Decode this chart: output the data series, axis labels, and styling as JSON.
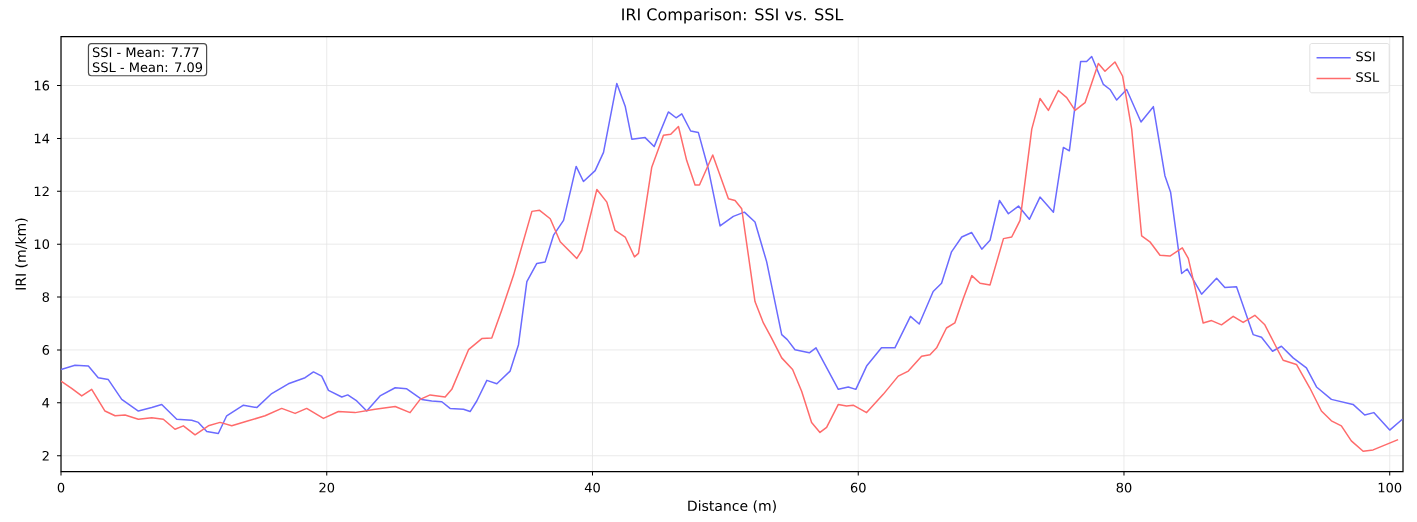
{
  "chart_data": {
    "type": "line",
    "title": "IRI Comparison: SSI vs. SSL",
    "xlabel": "Distance (m)",
    "ylabel": "IRI (m/km)",
    "xlim": [
      0,
      101
    ],
    "ylim": [
      1.4,
      17.85
    ],
    "xticks": [
      0,
      20,
      40,
      60,
      80,
      100
    ],
    "yticks": [
      2,
      4,
      6,
      8,
      10,
      12,
      14,
      16
    ],
    "grid": true,
    "legend": "top right",
    "marker": "none",
    "line_style": "solid",
    "annotations": [
      "SSI - Mean: 7.77",
      "SSL - Mean: 7.09"
    ],
    "series": [
      {
        "name": "SSI",
        "color": "#6b6bff",
        "x": [
          0,
          1.05,
          2.06,
          2.8,
          3.56,
          4.57,
          5.82,
          6.83,
          7.58,
          8.71,
          9.84,
          10.34,
          10.97,
          11.84,
          12.47,
          13.73,
          14.73,
          15.86,
          17.11,
          18.37,
          19.0,
          19.62,
          20.13,
          21.13,
          21.58,
          22.26,
          23.01,
          24.01,
          25.15,
          26.02,
          27.15,
          27.9,
          28.66,
          29.28,
          30.29,
          30.79,
          31.29,
          32.05,
          32.8,
          33.8,
          34.43,
          35.06,
          35.81,
          36.44,
          37.07,
          37.82,
          38.32,
          38.77,
          39.32,
          40.2,
          40.83,
          41.83,
          42.46,
          42.96,
          43.96,
          44.64,
          45.71,
          46.29,
          46.72,
          47.39,
          47.97,
          48.72,
          49.6,
          50.6,
          51.43,
          52.23,
          53.11,
          54.24,
          54.66,
          55.24,
          56.32,
          56.82,
          58.5,
          59.25,
          59.82,
          60.63,
          61.75,
          62.76,
          63.93,
          64.59,
          65.64,
          66.27,
          67.02,
          67.79,
          68.54,
          69.3,
          69.92,
          70.63,
          71.3,
          72.06,
          72.88,
          73.68,
          74.69,
          75.44,
          75.89,
          76.74,
          77.19,
          77.57,
          78.45,
          78.95,
          79.45,
          80.2,
          81.28,
          82.21,
          83.08,
          83.51,
          84.34,
          84.76,
          85.84,
          86.97,
          87.59,
          88.47,
          89.72,
          90.35,
          91.18,
          91.85,
          92.73,
          93.73,
          94.49,
          95.61,
          97.24,
          98.12,
          98.8,
          100.0,
          100.95
        ],
        "values": [
          5.26,
          5.42,
          5.39,
          4.95,
          4.88,
          4.13,
          3.69,
          3.82,
          3.94,
          3.38,
          3.34,
          3.26,
          2.92,
          2.84,
          3.51,
          3.91,
          3.82,
          4.35,
          4.72,
          4.95,
          5.17,
          5.01,
          4.47,
          4.22,
          4.3,
          4.07,
          3.69,
          4.26,
          4.57,
          4.53,
          4.13,
          4.07,
          4.04,
          3.79,
          3.76,
          3.67,
          4.07,
          4.85,
          4.72,
          5.2,
          6.2,
          8.58,
          9.27,
          9.33,
          10.34,
          10.9,
          11.97,
          12.94,
          12.37,
          12.78,
          13.47,
          16.08,
          15.22,
          13.97,
          14.03,
          13.69,
          15.0,
          14.78,
          14.93,
          14.28,
          14.22,
          12.84,
          10.69,
          11.05,
          11.21,
          10.84,
          9.33,
          6.58,
          6.39,
          6.01,
          5.89,
          6.08,
          4.51,
          4.6,
          4.51,
          5.39,
          6.08,
          6.08,
          7.27,
          6.98,
          8.21,
          8.52,
          9.71,
          10.27,
          10.44,
          9.81,
          10.15,
          11.65,
          11.15,
          11.44,
          10.94,
          11.78,
          11.21,
          13.66,
          13.53,
          16.91,
          16.91,
          17.1,
          16.04,
          15.85,
          15.45,
          15.85,
          14.62,
          15.2,
          12.59,
          11.96,
          8.89,
          9.06,
          8.11,
          8.71,
          8.36,
          8.39,
          6.58,
          6.48,
          5.95,
          6.14,
          5.7,
          5.32,
          4.6,
          4.13,
          3.94,
          3.54,
          3.63,
          2.97,
          3.38
        ]
      },
      {
        "name": "SSL",
        "color": "#ff6b6b",
        "x": [
          0,
          0.8,
          1.56,
          2.31,
          3.31,
          4.07,
          4.82,
          5.82,
          6.83,
          7.7,
          8.58,
          9.21,
          10.09,
          11.09,
          11.97,
          12.85,
          14.1,
          15.36,
          16.61,
          17.62,
          18.49,
          19.75,
          20.88,
          22.13,
          23.64,
          25.15,
          26.27,
          27.03,
          27.78,
          28.91,
          29.41,
          30.67,
          31.67,
          32.42,
          33.18,
          34.06,
          35.44,
          36.02,
          36.82,
          37.57,
          38.82,
          39.2,
          40.33,
          41.08,
          41.7,
          42.46,
          43.16,
          43.46,
          44.46,
          45.34,
          45.89,
          46.47,
          47.09,
          47.72,
          48.05,
          49.05,
          50.23,
          50.73,
          51.23,
          52.23,
          52.86,
          53.48,
          54.24,
          55.06,
          55.74,
          56.49,
          57.12,
          57.62,
          58.5,
          59.12,
          59.62,
          60.63,
          61.88,
          63.01,
          63.77,
          64.77,
          65.4,
          65.9,
          66.64,
          67.27,
          67.92,
          68.55,
          69.17,
          69.92,
          70.93,
          71.55,
          72.18,
          73.06,
          73.68,
          74.31,
          75.06,
          75.69,
          76.32,
          77.07,
          78.07,
          78.57,
          79.32,
          79.9,
          80.58,
          81.33,
          81.95,
          82.71,
          83.46,
          84.39,
          84.84,
          85.96,
          86.59,
          87.34,
          88.22,
          88.97,
          89.85,
          90.6,
          91.6,
          91.98,
          92.98,
          93.98,
          94.86,
          95.61,
          96.36,
          97.11,
          98.0,
          98.75,
          100.63
        ],
        "values": [
          4.82,
          4.55,
          4.26,
          4.51,
          3.69,
          3.51,
          3.54,
          3.38,
          3.44,
          3.38,
          3.0,
          3.13,
          2.79,
          3.13,
          3.26,
          3.13,
          3.32,
          3.51,
          3.79,
          3.6,
          3.79,
          3.41,
          3.67,
          3.63,
          3.76,
          3.86,
          3.63,
          4.13,
          4.3,
          4.22,
          4.51,
          6.01,
          6.43,
          6.45,
          7.52,
          8.83,
          11.24,
          11.28,
          10.96,
          10.09,
          9.46,
          9.77,
          12.07,
          11.59,
          10.52,
          10.27,
          9.52,
          9.65,
          12.91,
          14.12,
          14.16,
          14.45,
          13.16,
          12.24,
          12.24,
          13.37,
          11.72,
          11.65,
          11.34,
          7.83,
          7.02,
          6.45,
          5.7,
          5.26,
          4.44,
          3.26,
          2.88,
          3.07,
          3.94,
          3.88,
          3.91,
          3.63,
          4.32,
          5.01,
          5.2,
          5.76,
          5.82,
          6.08,
          6.83,
          7.02,
          7.96,
          8.81,
          8.52,
          8.46,
          10.21,
          10.27,
          10.9,
          14.35,
          15.51,
          15.06,
          15.81,
          15.54,
          15.06,
          15.35,
          16.83,
          16.54,
          16.89,
          16.35,
          14.35,
          10.31,
          10.09,
          9.58,
          9.55,
          9.86,
          9.46,
          7.02,
          7.11,
          6.95,
          7.27,
          7.04,
          7.31,
          6.95,
          5.97,
          5.61,
          5.45,
          4.57,
          3.69,
          3.32,
          3.13,
          2.56,
          2.17,
          2.22,
          2.61
        ]
      }
    ]
  }
}
